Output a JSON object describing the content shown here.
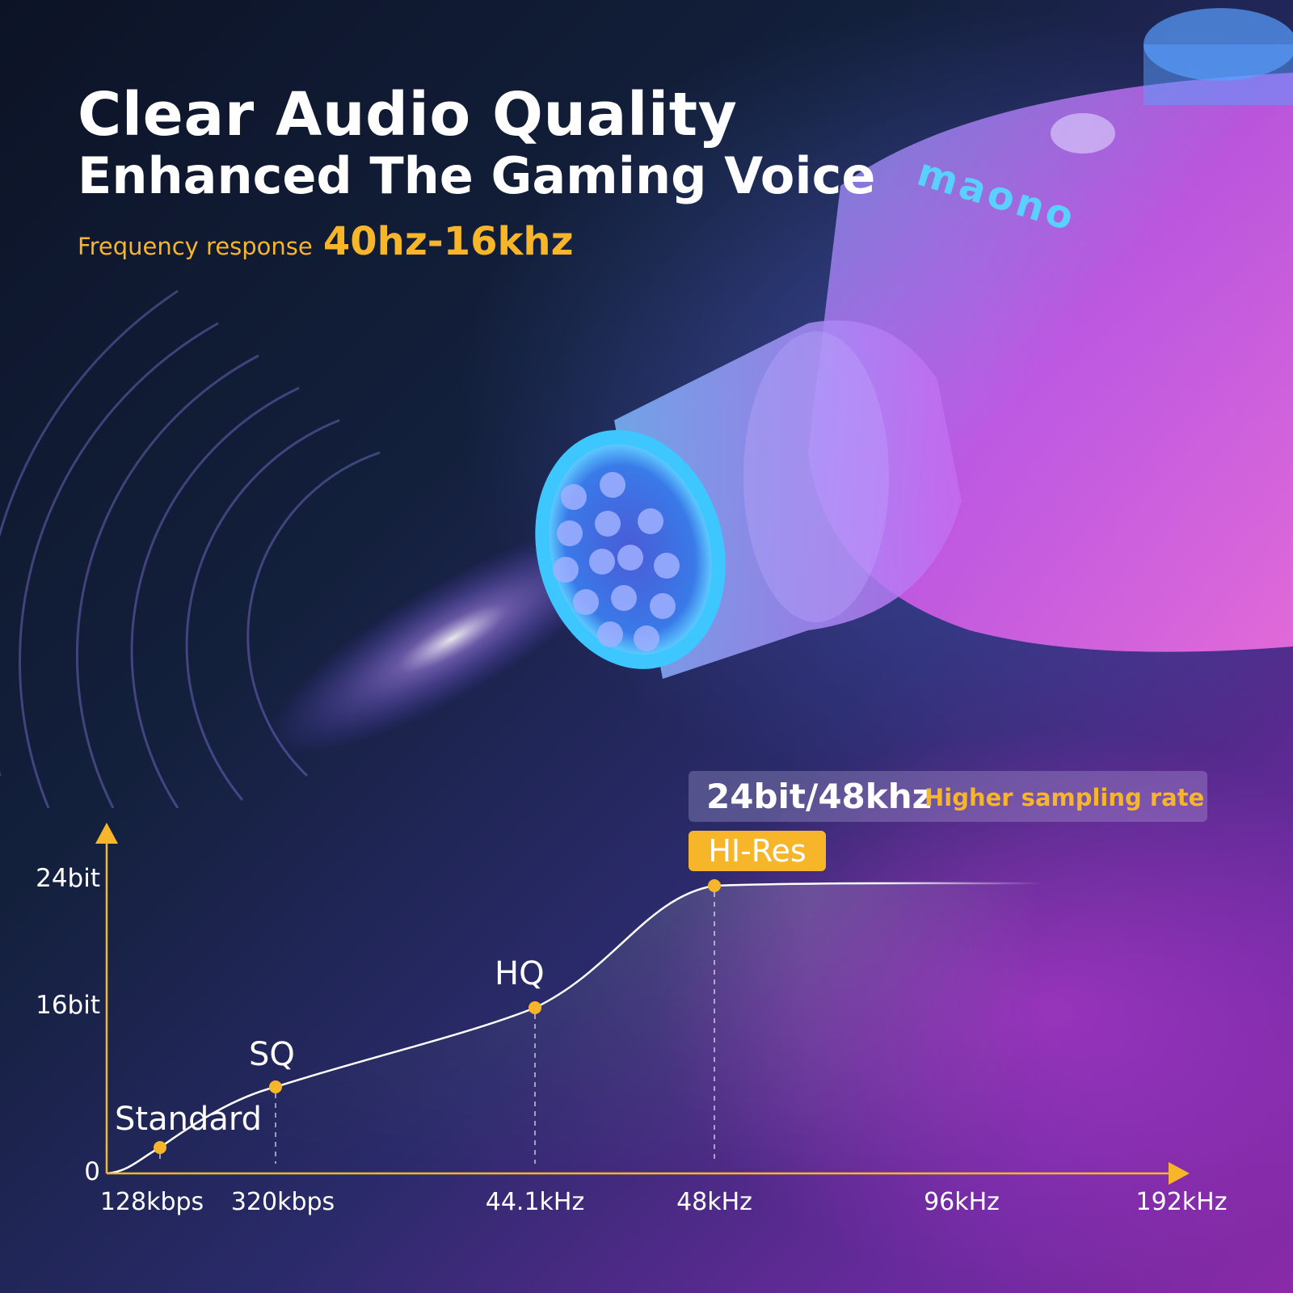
{
  "headline": {
    "line1": "Clear Audio Quality",
    "line2": "Enhanced The Gaming Voice",
    "freq_label": "Frequency response",
    "freq_value": "40hz-16khz"
  },
  "brand": "maono",
  "spec": {
    "main": "24bit/48khz",
    "sub": "Higher sampling rate",
    "badge": "HI-Res"
  },
  "colors": {
    "accent": "#f7b52a",
    "curve": "#ffffff",
    "axis": "#f7b52a"
  },
  "chart_data": {
    "type": "line",
    "x_categories": [
      "128kbps",
      "320kbps",
      "44.1kHz",
      "48kHz",
      "96kHz",
      "192kHz"
    ],
    "y_ticks": [
      "0",
      "16bit",
      "24bit"
    ],
    "points": [
      {
        "label": "Standard",
        "x": "128kbps"
      },
      {
        "label": "SQ",
        "x": "320kbps"
      },
      {
        "label": "HQ",
        "x": "44.1kHz"
      },
      {
        "label": "HI-Res",
        "x": "48kHz",
        "y": "24bit"
      }
    ],
    "grid": false,
    "legend": "none"
  }
}
